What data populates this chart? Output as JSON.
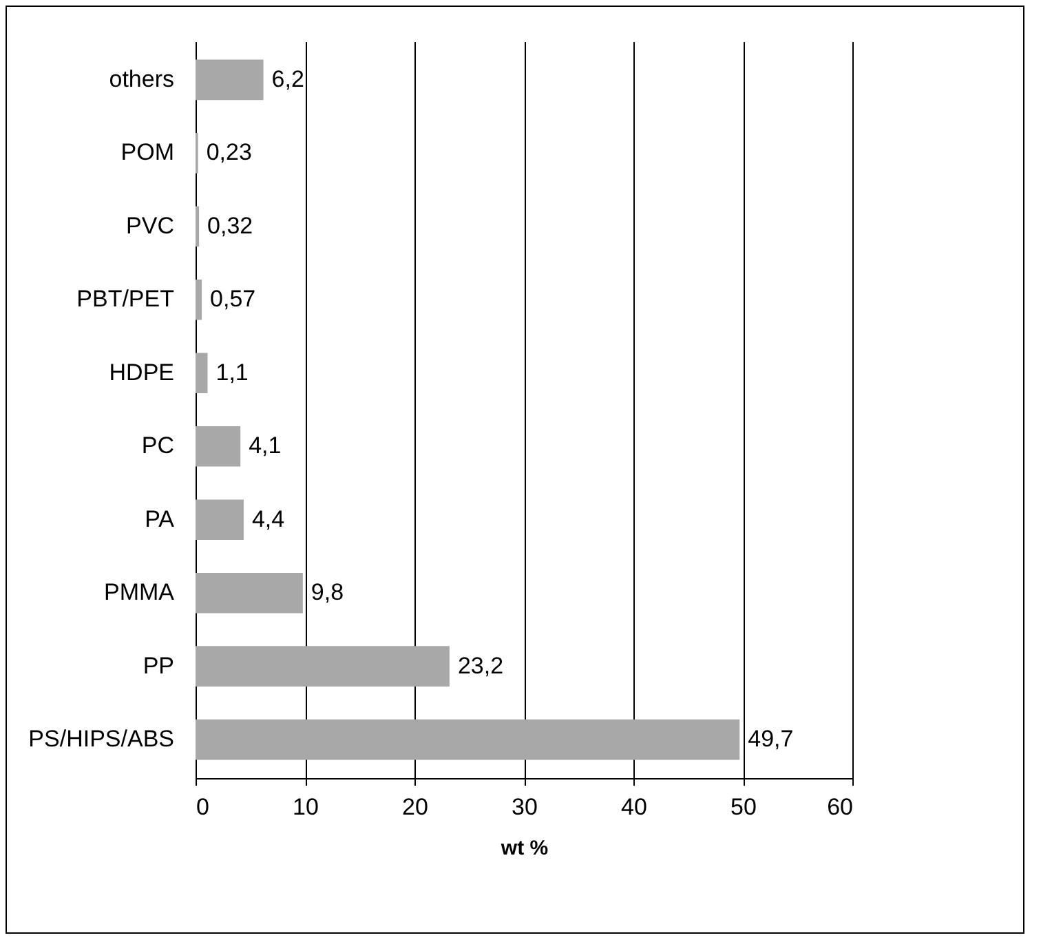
{
  "chart_data": {
    "type": "bar",
    "orientation": "horizontal",
    "xlabel": "wt %",
    "categories": [
      "others",
      "POM",
      "PVC",
      "PBT/PET",
      "HDPE",
      "PC",
      "PA",
      "PMMA",
      "PP",
      "PS/HIPS/ABS"
    ],
    "values": [
      6.2,
      0.23,
      0.32,
      0.57,
      1.1,
      4.1,
      4.4,
      9.8,
      23.2,
      49.7
    ],
    "value_labels": [
      "6,2",
      "0,23",
      "0,32",
      "0,57",
      "1,1",
      "4,1",
      "4,4",
      "9,8",
      "23,2",
      "49,7"
    ],
    "color": "#a8a8a8",
    "xlim": [
      0,
      60
    ],
    "xticks": [
      0,
      10,
      20,
      30,
      40,
      50,
      60
    ],
    "grid": "x"
  }
}
